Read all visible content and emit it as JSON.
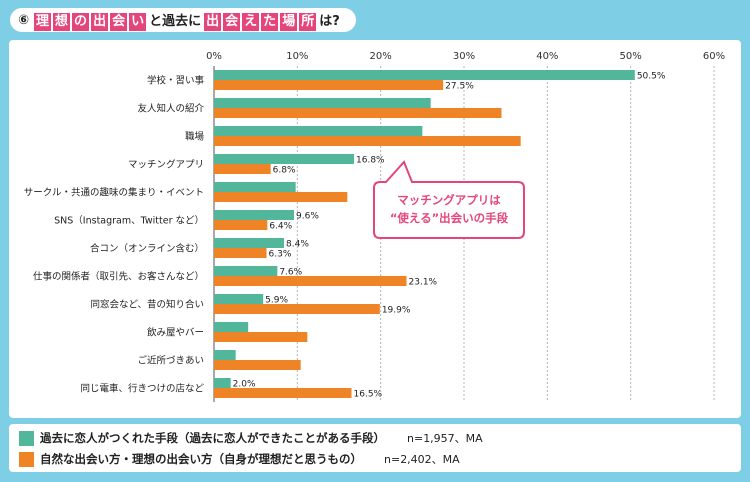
{
  "header": {
    "number": "⑥",
    "parts": [
      {
        "text": "理",
        "hl": true
      },
      {
        "text": "想",
        "hl": true
      },
      {
        "text": "の",
        "hl": true
      },
      {
        "text": "出",
        "hl": true
      },
      {
        "text": "会",
        "hl": true
      },
      {
        "text": "い",
        "hl": true
      },
      {
        "text": "と過去に",
        "hl": false
      },
      {
        "text": "出",
        "hl": true
      },
      {
        "text": "会",
        "hl": true
      },
      {
        "text": "え",
        "hl": true
      },
      {
        "text": "た",
        "hl": true
      },
      {
        "text": "場",
        "hl": true
      },
      {
        "text": "所",
        "hl": true
      },
      {
        "text": "は?",
        "hl": false
      }
    ]
  },
  "colors": {
    "series1": "#52b69a",
    "series2": "#ef8427",
    "accent": "#e4467c",
    "background": "#7ecfe6"
  },
  "chart_data": {
    "type": "bar",
    "orientation": "horizontal",
    "xlim": [
      0,
      60
    ],
    "tick_labels": [
      "0%",
      "10%",
      "20%",
      "30%",
      "40%",
      "50%",
      "60%"
    ],
    "grid": true,
    "categories": [
      "学校・習い事",
      "友人知人の紹介",
      "職場",
      "マッチングアプリ",
      "サークル・共通の趣味の集まり・イベント",
      "SNS（Instagram、Twitter など）",
      "合コン（オンライン含む）",
      "仕事の関係者（取引先、お客さんなど）",
      "同窓会など、昔の知り合い",
      "飲み屋やバー",
      "ご近所づきあい",
      "同じ電車、行きつけの店など"
    ],
    "series": [
      {
        "name": "過去に恋人がつくれた手段（過去に恋人ができたことがある手段）",
        "values": [
          50.5,
          26.0,
          25.0,
          16.8,
          9.8,
          9.6,
          8.4,
          7.6,
          5.9,
          4.1,
          2.6,
          2.0
        ],
        "labels": [
          "50.5%",
          "",
          "",
          "16.8%",
          "",
          "9.6%",
          "8.4%",
          "7.6%",
          "5.9%",
          "",
          "",
          "2.0%"
        ]
      },
      {
        "name": "自然な出会い方・理想の出会い方（自身が理想だと思うもの）",
        "values": [
          27.5,
          34.5,
          36.8,
          6.8,
          16.0,
          6.4,
          6.3,
          23.1,
          19.9,
          11.2,
          10.4,
          16.5
        ],
        "labels": [
          "27.5%",
          "",
          "",
          "6.8%",
          "",
          "6.4%",
          "6.3%",
          "23.1%",
          "19.9%",
          "",
          "",
          "16.5%"
        ]
      }
    ],
    "callout": {
      "line1": "マッチングアプリは",
      "line2": "“使える”出会いの手段"
    }
  },
  "legend": [
    {
      "label": "過去に恋人がつくれた手段（過去に恋人ができたことがある手段）",
      "n": "n=1,957、MA"
    },
    {
      "label": "自然な出会い方・理想の出会い方（自身が理想だと思うもの）",
      "n": "n=2,402、MA"
    }
  ]
}
